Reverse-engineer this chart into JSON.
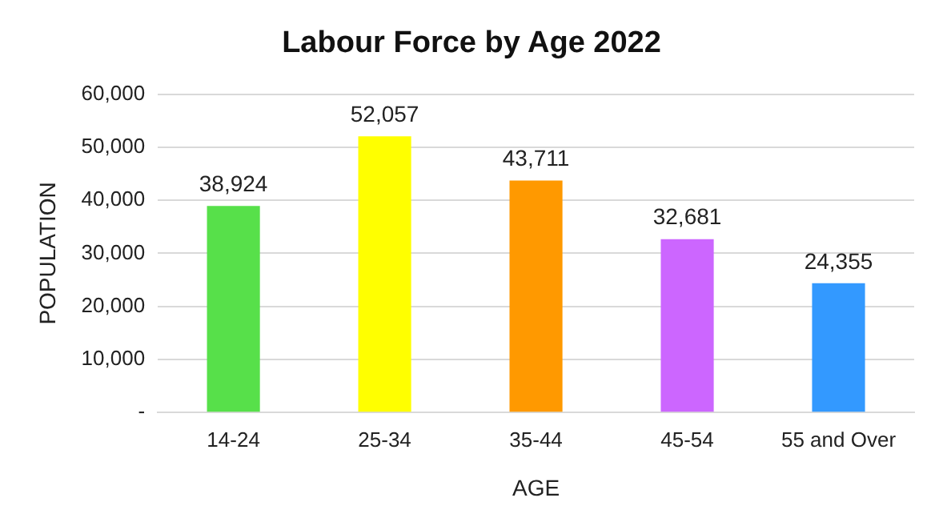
{
  "chart_data": {
    "type": "bar",
    "title": "Labour Force by Age 2022",
    "xlabel": "AGE",
    "ylabel": "POPULATION",
    "categories": [
      "14-24",
      "25-34",
      "35-44",
      "45-54",
      "55 and Over"
    ],
    "values": [
      38924,
      52057,
      43711,
      32681,
      24355
    ],
    "colors": [
      "#57e04a",
      "#ffff00",
      "#ff9900",
      "#cc66ff",
      "#3399ff"
    ],
    "ylim": [
      0,
      60000
    ],
    "yticks": [
      {
        "value": 0,
        "label": "-"
      },
      {
        "value": 10000,
        "label": "10,000"
      },
      {
        "value": 20000,
        "label": "20,000"
      },
      {
        "value": 30000,
        "label": "30,000"
      },
      {
        "value": 40000,
        "label": "40,000"
      },
      {
        "value": 50000,
        "label": "50,000"
      },
      {
        "value": 60000,
        "label": "60,000"
      }
    ],
    "value_labels": [
      "38,924",
      "52,057",
      "43,711",
      "32,681",
      "24,355"
    ],
    "grid": "y",
    "legend": false
  }
}
